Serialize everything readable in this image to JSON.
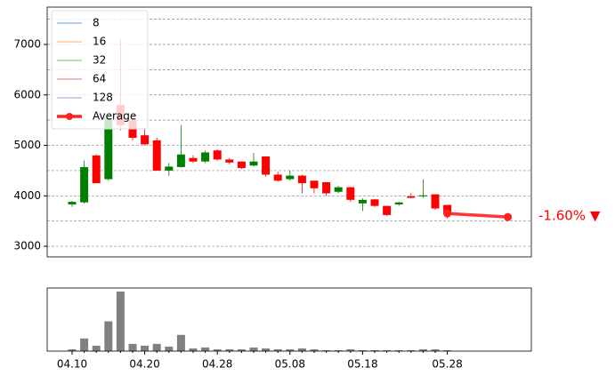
{
  "chart_data": {
    "type": "candlestick",
    "categories": [
      "04.10",
      null,
      null,
      null,
      null,
      null,
      "04.20",
      null,
      null,
      null,
      null,
      null,
      "04.28",
      null,
      null,
      null,
      null,
      null,
      "05.08",
      null,
      null,
      null,
      null,
      null,
      "05.18",
      null,
      null,
      null,
      null,
      null,
      null,
      "05.28"
    ],
    "open": [
      3830,
      3870,
      4800,
      4330,
      5800,
      5500,
      5200,
      5100,
      4500,
      4570,
      4750,
      4680,
      4900,
      4720,
      4680,
      4600,
      4780,
      4420,
      4330,
      4400,
      4300,
      4270,
      4080,
      4170,
      3850,
      3930,
      3800,
      3830,
      3990,
      3990,
      4030,
      3820
    ],
    "close": [
      3880,
      4570,
      4250,
      5550,
      5400,
      5150,
      5020,
      4500,
      4580,
      4820,
      4680,
      4860,
      4720,
      4660,
      4550,
      4680,
      4420,
      4300,
      4400,
      4250,
      4150,
      4050,
      4170,
      3920,
      3920,
      3800,
      3620,
      3870,
      3960,
      4010,
      3750,
      3650
    ],
    "high": [
      3900,
      4700,
      4820,
      5600,
      7100,
      5600,
      5350,
      5150,
      4650,
      5400,
      4800,
      4900,
      4920,
      4750,
      4680,
      4850,
      4780,
      4480,
      4500,
      4420,
      4300,
      4270,
      4200,
      4180,
      3950,
      3930,
      3800,
      3880,
      4050,
      4330,
      4030,
      3820
    ],
    "low": [
      3780,
      3850,
      4250,
      4300,
      5300,
      5100,
      5000,
      4500,
      4400,
      4560,
      4650,
      4650,
      4700,
      4620,
      4530,
      4580,
      4380,
      4280,
      4300,
      4050,
      4050,
      4000,
      4050,
      3880,
      3700,
      3780,
      3600,
      3800,
      3950,
      3960,
      3720,
      3550
    ],
    "up_color": "#008000",
    "down_color": "#ff0000",
    "ylim": [
      2790,
      7740
    ],
    "yticks": [
      3000,
      4000,
      5000,
      6000,
      7000
    ],
    "grid_lines": [
      3000,
      3500,
      4000,
      4500,
      5000,
      5500,
      6000,
      6500,
      7000,
      7500
    ],
    "legend": [
      {
        "name": "8",
        "color": "#7fb2e5"
      },
      {
        "name": "16",
        "color": "#ffbf86"
      },
      {
        "name": "32",
        "color": "#86d886"
      },
      {
        "name": "64",
        "color": "#ea8d8d"
      },
      {
        "name": "128",
        "color": "#c6add9"
      }
    ],
    "average": {
      "name": "Average",
      "color": "#ff2020",
      "x": [
        31,
        36
      ],
      "values": [
        3650,
        3580
      ]
    },
    "annotation": "-1.60% ▼",
    "volume": {
      "values": [
        2,
        14,
        6,
        33,
        66,
        8,
        6,
        8,
        5,
        18,
        3,
        4,
        2,
        2,
        2,
        4,
        3,
        2,
        2,
        3,
        2,
        1,
        1,
        2,
        1,
        1,
        1,
        1,
        1,
        2,
        2,
        1
      ],
      "color": "#808080",
      "ylim": [
        0,
        70
      ]
    }
  }
}
